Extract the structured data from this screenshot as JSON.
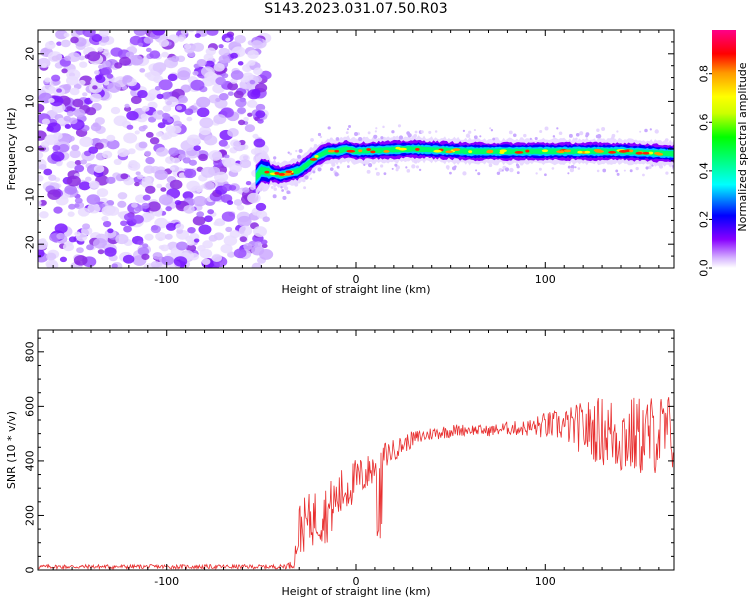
{
  "title": "S143.2023.031.07.50.R03",
  "chart_data": [
    {
      "type": "heatmap",
      "xlabel": "Height of straight line (km)",
      "ylabel": "Frequency (Hz)",
      "xlim": [
        -168,
        168
      ],
      "ylim": [
        -25,
        25
      ],
      "xticks": [
        -100,
        0,
        100
      ],
      "yticks": [
        -20,
        -10,
        0,
        10,
        20
      ],
      "colorbar": {
        "label": "Normalized spectral amplitude",
        "ticks": [
          0.0,
          0.2,
          0.4,
          0.6,
          0.8
        ],
        "range": [
          0,
          0.98
        ],
        "colormap": [
          "#ffffff",
          "#8800ff",
          "#0000ff",
          "#00ffff",
          "#00ff00",
          "#ffff00",
          "#ff8800",
          "#ff0000",
          "#ff0088"
        ]
      },
      "noise_region": {
        "x": [
          -168,
          -47
        ],
        "y": [
          -25,
          25
        ],
        "level_range": [
          0.05,
          0.2
        ]
      },
      "ridge": {
        "x": [
          -53,
          -50,
          -45,
          -40,
          -35,
          -30,
          -25,
          -20,
          -15,
          -10,
          -5,
          0,
          10,
          30,
          60,
          100,
          140,
          168
        ],
        "y": [
          -6,
          -4.5,
          -5,
          -5.5,
          -5,
          -4.5,
          -3,
          -1.5,
          -0.5,
          -0.5,
          0,
          -0.5,
          -0.3,
          0,
          -0.5,
          -0.5,
          -0.5,
          -1
        ]
      }
    },
    {
      "type": "line",
      "xlabel": "Height of straight line (km)",
      "ylabel": "SNR (10 * v/v)",
      "xlim": [
        -168,
        168
      ],
      "ylim": [
        0,
        880
      ],
      "xticks": [
        -100,
        0,
        100
      ],
      "yticks": [
        0,
        200,
        400,
        600,
        800
      ],
      "color": "#e83030",
      "envelope": {
        "x": [
          -168,
          -40,
          -33,
          -30,
          -25,
          -20,
          -15,
          -10,
          -5,
          0,
          5,
          10,
          15,
          20,
          25,
          30,
          40,
          50,
          60,
          70,
          80,
          90,
          100,
          110,
          120,
          130,
          140,
          150,
          160,
          168
        ],
        "y": [
          12,
          12,
          20,
          150,
          180,
          200,
          210,
          260,
          300,
          330,
          350,
          380,
          420,
          440,
          460,
          480,
          500,
          510,
          515,
          510,
          520,
          520,
          530,
          530,
          520,
          510,
          490,
          490,
          500,
          500
        ],
        "spread": [
          8,
          8,
          15,
          100,
          100,
          110,
          110,
          100,
          90,
          80,
          70,
          60,
          50,
          40,
          35,
          30,
          25,
          25,
          20,
          20,
          25,
          30,
          50,
          60,
          100,
          130,
          150,
          150,
          150,
          150
        ]
      }
    }
  ]
}
